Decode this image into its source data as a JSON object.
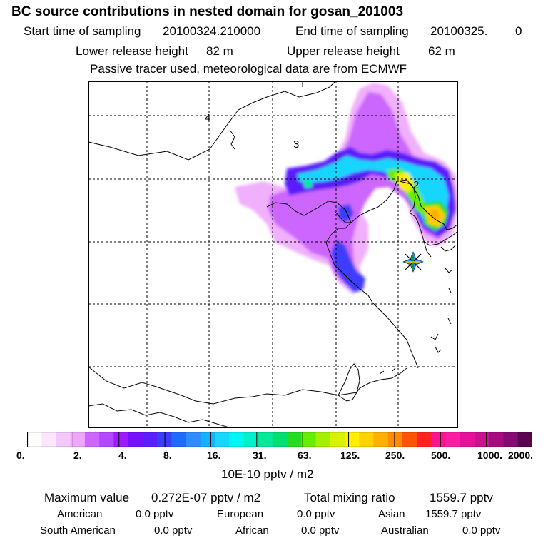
{
  "header": {
    "title": "BC  source contributions in nested domain for gosan_201003",
    "start_label": "Start time of sampling",
    "start_value": "20100324.210000",
    "end_label": "End time of sampling",
    "end_value": "20100325.",
    "end_value_tail": "0",
    "lower_label": "Lower release height",
    "lower_value": "82 m",
    "upper_label": "Upper release height",
    "upper_value": "62 m",
    "tracer_note": "Passive tracer used, meteorological data are from ECMWF"
  },
  "map": {
    "region_labels": [
      "4",
      "3",
      "2"
    ],
    "receptor_marker": "star-icon",
    "colors": {
      "frame": "#000000",
      "grid": "#000000",
      "coast": "#000000"
    }
  },
  "colorbar": {
    "colors": [
      "#ffffff",
      "#fbe6fe",
      "#f5c8fc",
      "#eea7fb",
      "#cc66ff",
      "#b347ff",
      "#9f1bff",
      "#7710ff",
      "#5a1fff",
      "#3c3cff",
      "#1f6aff",
      "#2e8cff",
      "#0fb3ff",
      "#17d6ff",
      "#00f5f5",
      "#00f0cc",
      "#00ea9a",
      "#00e070",
      "#22dd22",
      "#66ee00",
      "#a4f000",
      "#d8f300",
      "#ffee00",
      "#ffd200",
      "#ffb000",
      "#ff8c00",
      "#ff5500",
      "#ff2222",
      "#ff1490",
      "#ff1ca5",
      "#e6109b",
      "#cc1090",
      "#a80a80",
      "#850a73",
      "#5a0550"
    ],
    "tick_labels": [
      "0.",
      "2.",
      "4.",
      "8.",
      "16.",
      "31.",
      "63.",
      "125.",
      "250.",
      "500.",
      "1000.",
      "2000."
    ],
    "unit": "10E-10 pptv / m2"
  },
  "footer": {
    "max_label": "Maximum value",
    "max_value": "0.272E-07 pptv / m2",
    "total_label": "Total mixing ratio",
    "total_value": "1559.7 pptv",
    "sources": [
      {
        "name": "American",
        "value": "0.0 pptv"
      },
      {
        "name": "European",
        "value": "0.0 pptv"
      },
      {
        "name": "Asian",
        "value": "1559.7 pptv"
      },
      {
        "name": "South American",
        "value": "0.0 pptv"
      },
      {
        "name": "African",
        "value": "0.0 pptv"
      },
      {
        "name": "Australian",
        "value": "0.0 pptv"
      }
    ]
  }
}
